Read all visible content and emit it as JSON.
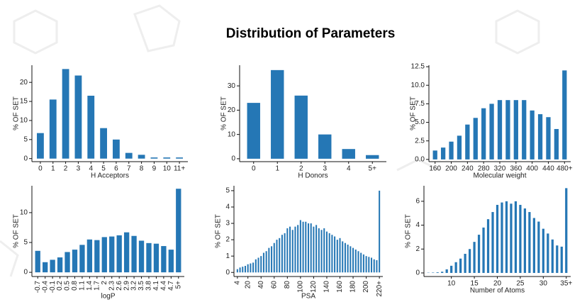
{
  "title": "Distribution of Parameters",
  "chart_data": [
    {
      "type": "bar",
      "x_label": "H Acceptors",
      "y_label": "% OF SET",
      "color": "#2577b5",
      "categories": [
        "0",
        "1",
        "2",
        "3",
        "4",
        "5",
        "6",
        "7",
        "8",
        "9",
        "10",
        "11+"
      ],
      "values": [
        6.7,
        15.5,
        23.5,
        21.8,
        16.5,
        8,
        5,
        1.5,
        1,
        0.3,
        0.3,
        0.3
      ],
      "ylim": [
        -0.8,
        24.5
      ],
      "yticks": [
        0,
        5,
        10,
        15,
        20
      ]
    },
    {
      "type": "bar",
      "x_label": "H Donors",
      "y_label": "% OF SET",
      "color": "#2577b5",
      "categories": [
        "0",
        "1",
        "2",
        "3",
        "4",
        "5+"
      ],
      "values": [
        23,
        36.5,
        26,
        10,
        4,
        1.5
      ],
      "ylim": [
        -1.2,
        38.5
      ],
      "yticks": [
        0,
        10,
        20,
        30
      ]
    },
    {
      "type": "bar",
      "x_label": "Molecular weight",
      "y_label": "% OF SET",
      "color": "#2577b5",
      "categories": [
        "160",
        null,
        "200",
        null,
        "240",
        null,
        "280",
        null,
        "320",
        null,
        "360",
        null,
        "400",
        null,
        "440",
        null,
        "480+"
      ],
      "values": [
        1.2,
        1.6,
        2.4,
        3.2,
        4.7,
        5.6,
        6.9,
        7.5,
        8.0,
        8.0,
        8.0,
        8.0,
        6.6,
        6.1,
        5.7,
        4.1,
        12.0
      ],
      "ylim": [
        -0.3,
        12.7
      ],
      "yticks": [
        {
          "value": 0,
          "label": "0.0"
        },
        {
          "value": 2.5,
          "label": "2.5"
        },
        {
          "value": 5,
          "label": "5.0"
        },
        {
          "value": 7.5,
          "label": "7.5"
        },
        {
          "value": 10,
          "label": "10.0"
        },
        {
          "value": 12.5,
          "label": "12.5"
        }
      ]
    },
    {
      "type": "bar",
      "x_label": "logP",
      "y_label": "% OF SET",
      "color": "#2577b5",
      "categories": [
        "-0.7",
        "-0.4",
        "-0.1",
        "0.2",
        "0.5",
        "0.8",
        "1.1",
        "1.4",
        "1.7",
        "2",
        "2.3",
        "2.6",
        "2.9",
        "3.2",
        "3.5",
        "3.8",
        "4.1",
        "4.4",
        "4.7",
        "5+"
      ],
      "values": [
        3.6,
        1.7,
        2.1,
        2.5,
        3.4,
        3.8,
        4.6,
        5.5,
        5.4,
        5.9,
        6.0,
        6.2,
        6.7,
        6.1,
        5.3,
        4.9,
        4.8,
        4.4,
        3.8,
        14.0
      ],
      "ylim": [
        -0.7,
        14.5
      ],
      "yticks": [
        0,
        5,
        10
      ]
    },
    {
      "type": "bar",
      "x_label": "PSA",
      "y_label": "% OF SET",
      "color": "#2577b5",
      "categories": [
        "4",
        null,
        null,
        null,
        "20",
        null,
        null,
        null,
        null,
        "40",
        null,
        null,
        null,
        null,
        "60",
        null,
        null,
        null,
        null,
        "80",
        null,
        null,
        null,
        null,
        "100",
        null,
        null,
        null,
        null,
        "120",
        null,
        null,
        null,
        null,
        "140",
        null,
        null,
        null,
        null,
        "160",
        null,
        null,
        null,
        null,
        "180",
        null,
        null,
        null,
        null,
        "200",
        null,
        null,
        null,
        null,
        "220+"
      ],
      "values": [
        0.2,
        0.3,
        0.35,
        0.4,
        0.5,
        0.55,
        0.6,
        0.8,
        0.9,
        1.0,
        1.2,
        1.3,
        1.5,
        1.6,
        1.8,
        2.0,
        2.1,
        2.3,
        2.4,
        2.7,
        2.8,
        2.6,
        2.8,
        2.9,
        3.2,
        3.1,
        3.1,
        3.0,
        3.0,
        2.8,
        2.9,
        2.7,
        2.6,
        2.7,
        2.5,
        2.4,
        2.3,
        2.2,
        2.0,
        2.1,
        1.9,
        1.8,
        1.7,
        1.6,
        1.5,
        1.4,
        1.3,
        1.2,
        1.1,
        1.0,
        0.95,
        0.9,
        0.8,
        0.75,
        5.0
      ],
      "ylim": [
        -0.25,
        5.3
      ],
      "yticks": [
        0,
        1,
        2,
        3,
        4,
        5
      ]
    },
    {
      "type": "bar",
      "x_label": "Number of Atoms",
      "y_label": "% OF SET",
      "color": "#2577b5",
      "categories": [
        null,
        null,
        null,
        null,
        null,
        "10",
        null,
        null,
        null,
        null,
        "15",
        null,
        null,
        null,
        null,
        "20",
        null,
        null,
        null,
        null,
        "25",
        null,
        null,
        null,
        null,
        "30",
        null,
        null,
        null,
        null,
        "35+"
      ],
      "values": [
        0.02,
        0.03,
        0.05,
        0.1,
        0.3,
        0.6,
        0.9,
        1.2,
        1.6,
        2.0,
        2.6,
        3.2,
        3.8,
        4.5,
        5.1,
        5.7,
        5.9,
        6.0,
        5.8,
        6.0,
        5.7,
        5.4,
        5.1,
        4.6,
        4.3,
        3.7,
        3.3,
        2.8,
        2.3,
        2.2,
        7.1
      ],
      "ylim": [
        -0.3,
        7.3
      ],
      "yticks": [
        0,
        2,
        4,
        6
      ]
    }
  ]
}
